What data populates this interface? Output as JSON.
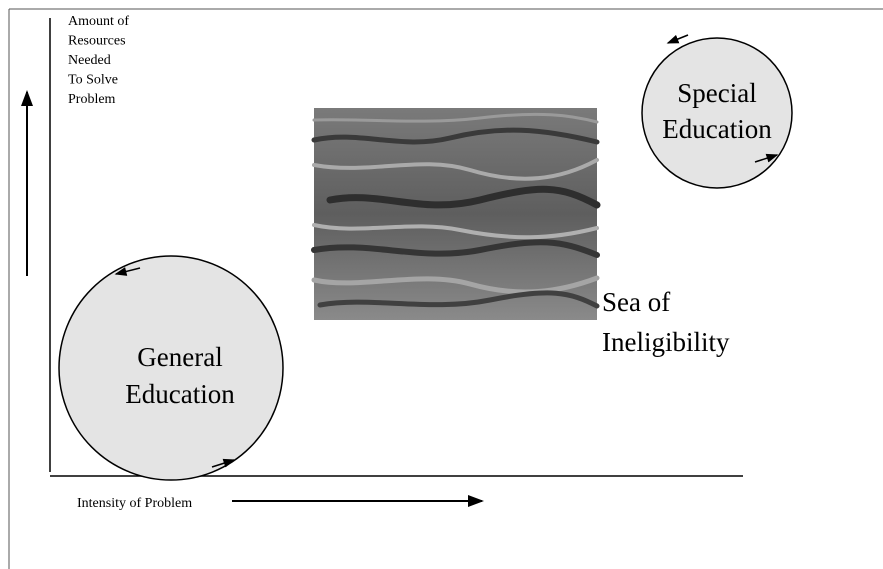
{
  "y_axis_label": [
    "Amount of",
    "Resources",
    "Needed",
    "To Solve",
    "Problem"
  ],
  "x_axis_label": "Intensity of Problem",
  "special_education": [
    "Special",
    "Education"
  ],
  "sea": [
    "Sea of",
    "Ineligibility"
  ],
  "general_education": [
    "General",
    "Education"
  ]
}
